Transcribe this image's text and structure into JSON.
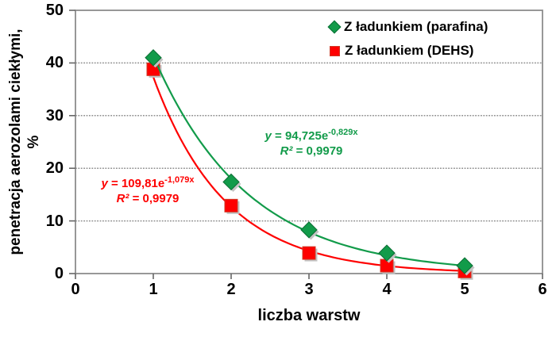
{
  "chart_data": {
    "type": "scatter",
    "title": "",
    "xlabel": "liczba warstw",
    "ylabel_line1": "penetracja aerozolami ciekłymi,",
    "ylabel_line2": "%",
    "xlim": [
      0,
      6
    ],
    "ylim": [
      0,
      50
    ],
    "x_ticks": [
      0,
      1,
      2,
      3,
      4,
      5,
      6
    ],
    "y_ticks": [
      0,
      10,
      20,
      30,
      40,
      50
    ],
    "grid": "horizontal-dotted",
    "legend_position": "top-right-inside",
    "x": [
      1,
      2,
      3,
      4,
      5
    ],
    "series": [
      {
        "name": "Z ładunkiem (parafina)",
        "marker": "diamond",
        "color": "#129b4a",
        "values": [
          41.0,
          17.4,
          8.3,
          3.9,
          1.5
        ],
        "trendline": {
          "type": "exponential",
          "a": 94.725,
          "b": -0.829,
          "var": "y",
          "body": " = 94,725e",
          "exponent": "-0,829x",
          "r2_var": "R²",
          "r2_body": " = 0,9979"
        }
      },
      {
        "name": "Z ładunkiem (DEHS)",
        "marker": "square",
        "color": "#fe0000",
        "values": [
          38.8,
          12.9,
          3.9,
          1.5,
          0.4
        ],
        "trendline": {
          "type": "exponential",
          "a": 109.81,
          "b": -1.079,
          "var": "y",
          "body": " = 109,81e",
          "exponent": "-1,079x",
          "r2_var": "R²",
          "r2_body": " = 0,9979"
        }
      }
    ]
  },
  "colors": {
    "green": "#129b4a",
    "green_edge": "#0a6e33",
    "red": "#fe0000",
    "red_edge": "#cf3a28",
    "grid": "#8f8f8f",
    "axis": "#8c8c8c",
    "tick": "#666666",
    "shadow": "#c3c3c3",
    "text": "#000000"
  }
}
